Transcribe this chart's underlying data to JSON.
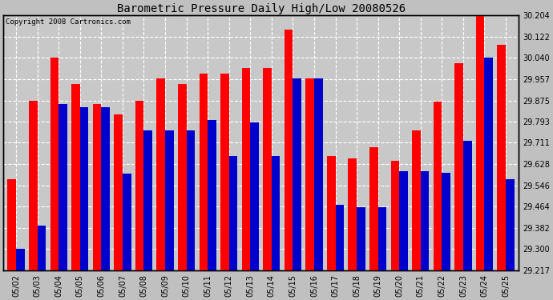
{
  "title": "Barometric Pressure Daily High/Low 20080526",
  "copyright": "Copyright 2008 Cartronics.com",
  "dates": [
    "05/02",
    "05/03",
    "05/04",
    "05/05",
    "05/06",
    "05/07",
    "05/08",
    "05/09",
    "05/10",
    "05/11",
    "05/12",
    "05/13",
    "05/14",
    "05/15",
    "05/16",
    "05/17",
    "05/18",
    "05/19",
    "05/20",
    "05/21",
    "05/22",
    "05/23",
    "05/24",
    "05/25"
  ],
  "highs": [
    29.57,
    29.875,
    30.04,
    29.94,
    29.86,
    29.82,
    29.875,
    29.96,
    29.94,
    29.98,
    29.98,
    30.0,
    30.0,
    30.15,
    29.96,
    29.66,
    29.65,
    29.693,
    29.64,
    29.76,
    29.87,
    30.02,
    30.204,
    30.09
  ],
  "lows": [
    29.3,
    29.39,
    29.86,
    29.85,
    29.85,
    29.59,
    29.76,
    29.76,
    29.76,
    29.8,
    29.66,
    29.79,
    29.66,
    29.96,
    29.96,
    29.47,
    29.46,
    29.46,
    29.6,
    29.6,
    29.595,
    29.72,
    30.04,
    29.57
  ],
  "high_color": "#ff0000",
  "low_color": "#0000cc",
  "bg_color": "#c0c0c0",
  "plot_bg_color": "#c8c8c8",
  "grid_color": "#ffffff",
  "ylim_min": 29.217,
  "ylim_max": 30.204,
  "yticks": [
    29.217,
    29.3,
    29.382,
    29.464,
    29.546,
    29.628,
    29.711,
    29.793,
    29.875,
    29.957,
    30.04,
    30.122,
    30.204
  ],
  "bar_width": 0.4,
  "title_fontsize": 10,
  "tick_fontsize": 7,
  "copyright_fontsize": 6.5
}
